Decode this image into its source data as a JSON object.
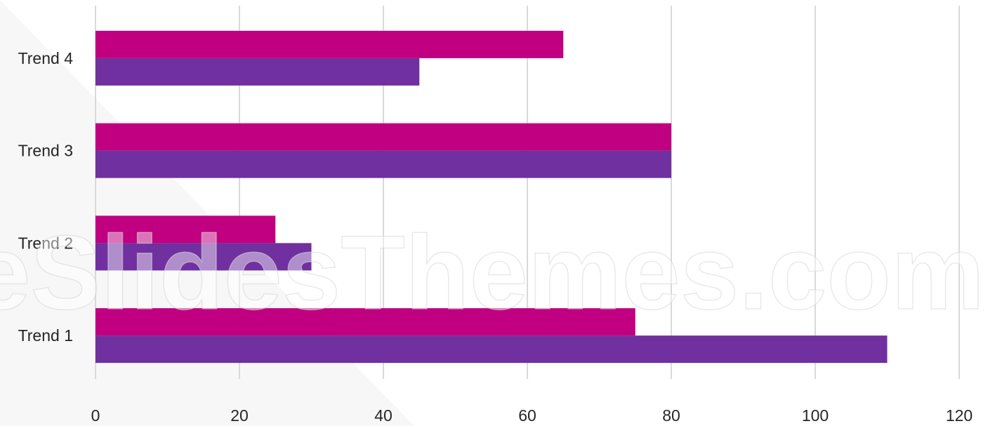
{
  "chart_data": {
    "type": "bar",
    "orientation": "horizontal",
    "categories": [
      "Trend 1",
      "Trend 2",
      "Trend 3",
      "Trend 4"
    ],
    "series": [
      {
        "values": [
          110,
          30,
          80,
          45
        ],
        "color": "#7030A0"
      },
      {
        "values": [
          75,
          25,
          80,
          65
        ],
        "color": "#C00080"
      }
    ],
    "xticks": [
      "0",
      "20",
      "40",
      "60",
      "80",
      "100",
      "120"
    ],
    "xlim": [
      0,
      120
    ],
    "grid": true,
    "legend": "none",
    "title": "",
    "xlabel": "",
    "ylabel": ""
  },
  "watermark": {
    "text": "eSlidesThemes.com"
  }
}
